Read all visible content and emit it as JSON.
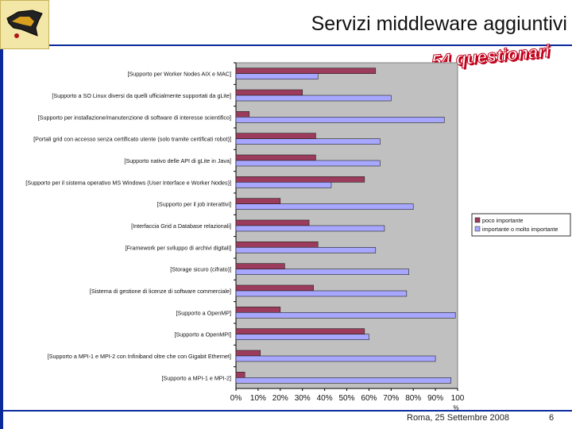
{
  "slide": {
    "title": "Servizi middleware aggiuntivi",
    "stamp": "54 questionari",
    "footer_date": "Roma, 25 Settembre 2008",
    "page_number": "6"
  },
  "colors": {
    "accent": "#0a2a9c",
    "series_low": "#9c3b5c",
    "series_high": "#a7a7ff",
    "plot_bg": "#c0c0c0"
  },
  "chart_data": {
    "type": "bar",
    "orientation": "horizontal",
    "title": "",
    "xlabel": "%",
    "ylabel": "",
    "xlim": [
      0,
      100
    ],
    "x_ticks": [
      "0%",
      "10%",
      "20%",
      "30%",
      "40%",
      "50%",
      "60%",
      "70%",
      "80%",
      "90%",
      "100"
    ],
    "grid": false,
    "legend_position": "right",
    "categories": [
      "[Supporto per Worker Nodes AIX e MAC]",
      "[Supporto a SO Linux diversi da quelli ufficialmente supportati da gLite]",
      "[Supporto per installazione/manutenzione di software di interesse scientifico]",
      "[Portali grid con accesso senza certificato utente (solo tramite certificati robot)]",
      "[Supporto nativo delle API di gLite in Java]",
      "[Supporto per il sistema operativo MS Windows (User Interface e Worker Nodes)]",
      "[Supporto per il job interattivi]",
      "[Interfaccia Grid a Database relazionali]",
      "[Framework per sviluppo di archivi digitali]",
      "[Storage sicuro (cifrato)]",
      "[Sistema di gestione di licenze di software commerciale]",
      "[Supporto a OpenMP]",
      "[Supporto a OpenMPI]",
      "[Supporto a MPI-1 e MPI-2 con Infiniband oltre che con Gigabit Ethernet]",
      "[Supporto a MPI-1 e MPI-2]"
    ],
    "series": [
      {
        "name": "poco importante",
        "values": [
          63,
          30,
          6,
          36,
          36,
          58,
          20,
          33,
          37,
          22,
          35,
          20,
          58,
          11,
          4
        ]
      },
      {
        "name": "importante o molto importante",
        "values": [
          37,
          70,
          94,
          65,
          65,
          43,
          80,
          67,
          63,
          78,
          77,
          99,
          60,
          90,
          97
        ]
      }
    ]
  }
}
